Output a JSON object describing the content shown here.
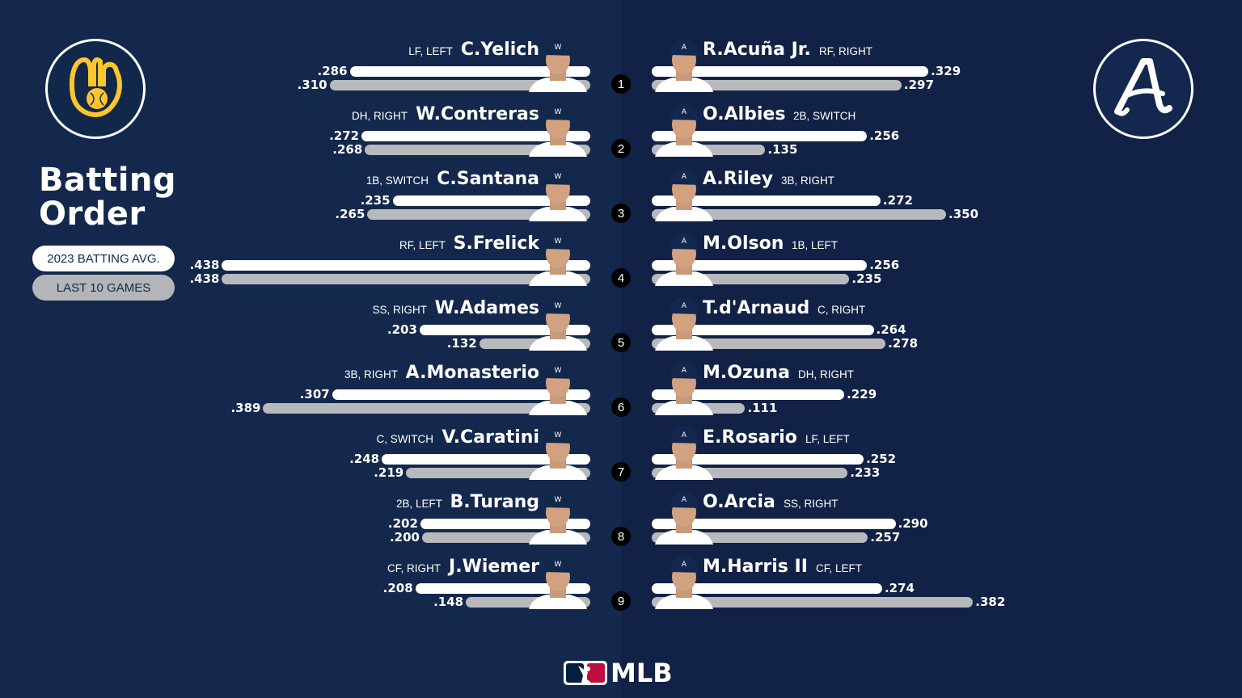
{
  "title_line1": "Batting",
  "title_line2": "Order",
  "legend": {
    "avg_label": "2023 BATTING AVG.",
    "l10_label": "LAST 10 GAMES"
  },
  "brand": "MLB",
  "colors": {
    "bar_avg": "#ffffff",
    "bar_l10": "#b8b9bc",
    "bg_brewers": "#13284c",
    "bg_braves": "#122146",
    "brewers_gold": "#ffc52f",
    "braves_red": "#ce1141"
  },
  "chart_data": {
    "type": "bar",
    "orientation": "horizontal-diverging",
    "series": [
      {
        "name": "2023 BATTING AVG."
      },
      {
        "name": "LAST 10 GAMES"
      }
    ],
    "batting_order": [
      "1",
      "2",
      "3",
      "4",
      "5",
      "6",
      "7",
      "8",
      "9"
    ],
    "brewers": [
      {
        "order": "1",
        "name": "C.Yelich",
        "pos": "LF, LEFT",
        "avg": ".286",
        "l10": ".310",
        "avg_v": 0.286,
        "l10_v": 0.31
      },
      {
        "order": "2",
        "name": "W.Contreras",
        "pos": "DH, RIGHT",
        "avg": ".272",
        "l10": ".268",
        "avg_v": 0.272,
        "l10_v": 0.268
      },
      {
        "order": "3",
        "name": "C.Santana",
        "pos": "1B, SWITCH",
        "avg": ".235",
        "l10": ".265",
        "avg_v": 0.235,
        "l10_v": 0.265
      },
      {
        "order": "4",
        "name": "S.Frelick",
        "pos": "RF, LEFT",
        "avg": ".438",
        "l10": ".438",
        "avg_v": 0.438,
        "l10_v": 0.438
      },
      {
        "order": "5",
        "name": "W.Adames",
        "pos": "SS, RIGHT",
        "avg": ".203",
        "l10": ".132",
        "avg_v": 0.203,
        "l10_v": 0.132
      },
      {
        "order": "6",
        "name": "A.Monasterio",
        "pos": "3B, RIGHT",
        "avg": ".307",
        "l10": ".389",
        "avg_v": 0.307,
        "l10_v": 0.389
      },
      {
        "order": "7",
        "name": "V.Caratini",
        "pos": "C, SWITCH",
        "avg": ".248",
        "l10": ".219",
        "avg_v": 0.248,
        "l10_v": 0.219
      },
      {
        "order": "8",
        "name": "B.Turang",
        "pos": "2B, LEFT",
        "avg": ".202",
        "l10": ".200",
        "avg_v": 0.202,
        "l10_v": 0.2
      },
      {
        "order": "9",
        "name": "J.Wiemer",
        "pos": "CF, RIGHT",
        "avg": ".208",
        "l10": ".148",
        "avg_v": 0.208,
        "l10_v": 0.148
      }
    ],
    "braves": [
      {
        "order": "1",
        "name": "R.Acuña Jr.",
        "pos": "RF, RIGHT",
        "avg": ".329",
        "l10": ".297",
        "avg_v": 0.329,
        "l10_v": 0.297
      },
      {
        "order": "2",
        "name": "O.Albies",
        "pos": "2B, SWITCH",
        "avg": ".256",
        "l10": ".135",
        "avg_v": 0.256,
        "l10_v": 0.135
      },
      {
        "order": "3",
        "name": "A.Riley",
        "pos": "3B, RIGHT",
        "avg": ".272",
        "l10": ".350",
        "avg_v": 0.272,
        "l10_v": 0.35
      },
      {
        "order": "4",
        "name": "M.Olson",
        "pos": "1B, LEFT",
        "avg": ".256",
        "l10": ".235",
        "avg_v": 0.256,
        "l10_v": 0.235
      },
      {
        "order": "5",
        "name": "T.d'Arnaud",
        "pos": "C, RIGHT",
        "avg": ".264",
        "l10": ".278",
        "avg_v": 0.264,
        "l10_v": 0.278
      },
      {
        "order": "6",
        "name": "M.Ozuna",
        "pos": "DH, RIGHT",
        "avg": ".229",
        "l10": ".111",
        "avg_v": 0.229,
        "l10_v": 0.111
      },
      {
        "order": "7",
        "name": "E.Rosario",
        "pos": "LF, LEFT",
        "avg": ".252",
        "l10": ".233",
        "avg_v": 0.252,
        "l10_v": 0.233
      },
      {
        "order": "8",
        "name": "O.Arcia",
        "pos": "SS, RIGHT",
        "avg": ".290",
        "l10": ".257",
        "avg_v": 0.29,
        "l10_v": 0.257
      },
      {
        "order": "9",
        "name": "M.Harris II",
        "pos": "CF, LEFT",
        "avg": ".274",
        "l10": ".382",
        "avg_v": 0.274,
        "l10_v": 0.382
      }
    ]
  }
}
